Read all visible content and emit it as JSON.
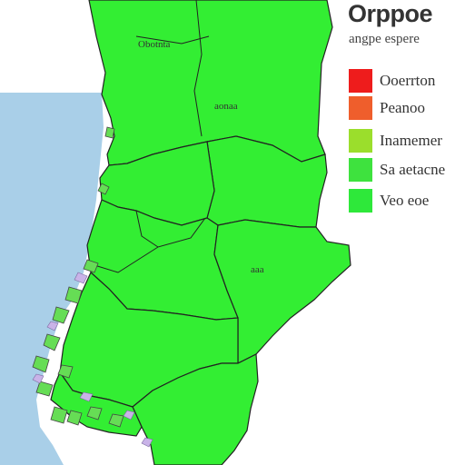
{
  "legend": {
    "title": "Orppoe",
    "subtitle": "angpe espere",
    "items": [
      {
        "label": "Ooerrton",
        "color": "#ee1c1c"
      },
      {
        "label": "Peanoo",
        "color": "#ef5e2c"
      },
      {
        "label": "Inamemer",
        "color": "#9bde2c"
      },
      {
        "label": "Sa aetacne",
        "color": "#3ee23e"
      },
      {
        "label": "Veo eoe",
        "color": "#2ee83a"
      }
    ]
  },
  "map": {
    "region_labels": [
      "Obotnta",
      "aonaa",
      "aaa"
    ],
    "colors": {
      "land": "#33ee33",
      "sea": "#a9cfe8",
      "outline": "#222222",
      "coast_islands": "#66dd55"
    }
  }
}
